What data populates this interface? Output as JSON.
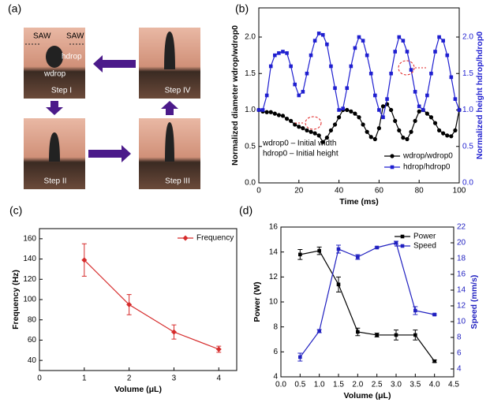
{
  "panel_labels": [
    "(a)",
    "(b)",
    "(c)",
    "(d)"
  ],
  "diagram": {
    "steps": [
      "Step I",
      "Step II",
      "Step III",
      "Step IV"
    ],
    "saw_left": "SAW",
    "saw_right": "SAW",
    "height_label": "hdrop",
    "width_label": "wdrop"
  },
  "chart_data": [
    {
      "type": "line",
      "xlabel": "Time (ms)",
      "ylabel": "Normalized diameter wdrop/wdrop0",
      "y2label": "Normalized height hdrop/hdrop0",
      "x": [
        0,
        2,
        4,
        6,
        8,
        10,
        12,
        14,
        16,
        18,
        20,
        22,
        24,
        26,
        28,
        30,
        32,
        34,
        36,
        38,
        40,
        42,
        44,
        46,
        48,
        50,
        52,
        54,
        56,
        58,
        60,
        62,
        64,
        66,
        68,
        70,
        72,
        74,
        76,
        78,
        80,
        82,
        84,
        86,
        88,
        90,
        92,
        94,
        96,
        98,
        100
      ],
      "xlim": [
        0,
        100
      ],
      "xticks": [
        0,
        20,
        40,
        60,
        80,
        100
      ],
      "ylim": [
        0,
        2.4
      ],
      "yticks": [
        {
          "value": 0,
          "label": "0.0"
        },
        {
          "value": 0.5,
          "label": "0.5"
        },
        {
          "value": 1,
          "label": "1.0"
        },
        {
          "value": 1.5,
          "label": "1.5"
        },
        {
          "value": 2,
          "label": "2.0"
        }
      ],
      "y2lim": [
        0,
        2.4
      ],
      "y2ticks": [
        {
          "value": 0,
          "label": "0.0"
        },
        {
          "value": 0.5,
          "label": "0.5"
        },
        {
          "value": 1,
          "label": "1.0"
        },
        {
          "value": 1.5,
          "label": "1.5"
        },
        {
          "value": 2,
          "label": "2.0"
        }
      ],
      "legend": "lower right",
      "annotations": [
        "wdrop0 – Initial width",
        "hdrop0 – Initial height"
      ],
      "series": [
        {
          "name": "wdrop/wdrop0",
          "color": "#000000",
          "marker": "circle",
          "values": [
            1.0,
            0.98,
            0.97,
            0.97,
            0.95,
            0.93,
            0.92,
            0.88,
            0.85,
            0.8,
            0.77,
            0.75,
            0.72,
            0.7,
            0.68,
            0.65,
            0.56,
            0.62,
            0.72,
            0.8,
            0.9,
            1.0,
            1.0,
            0.98,
            0.95,
            0.9,
            0.8,
            0.7,
            0.63,
            0.6,
            0.75,
            1.05,
            1.08,
            1.0,
            0.85,
            0.72,
            0.62,
            0.6,
            0.7,
            0.85,
            0.98,
            1.0,
            0.95,
            0.9,
            0.82,
            0.72,
            0.68,
            0.65,
            0.64,
            0.72,
            1.0
          ]
        },
        {
          "name": "hdrop/hdrop0",
          "color": "#1f1fd0",
          "marker": "square",
          "axis": "y2",
          "values": [
            1.0,
            1.0,
            1.2,
            1.6,
            1.75,
            1.78,
            1.8,
            1.78,
            1.6,
            1.35,
            1.2,
            1.25,
            1.5,
            1.75,
            1.95,
            2.05,
            2.03,
            1.9,
            1.6,
            1.3,
            1.0,
            1.02,
            1.3,
            1.6,
            1.85,
            2.0,
            1.95,
            1.75,
            1.5,
            1.2,
            1.0,
            0.9,
            1.15,
            1.5,
            1.8,
            2.0,
            1.95,
            1.8,
            1.55,
            1.25,
            1.05,
            1.0,
            1.2,
            1.5,
            1.8,
            2.0,
            1.95,
            1.75,
            1.45,
            1.15,
            1.0
          ]
        }
      ]
    },
    {
      "type": "line",
      "xlabel": "Volume (μL)",
      "ylabel": "Frequency (Hz)",
      "x": [
        1,
        2,
        3,
        4
      ],
      "xlim": [
        0,
        4.4
      ],
      "xticks": [
        0,
        1,
        2,
        3,
        4
      ],
      "ylim": [
        30,
        170
      ],
      "yticks": [
        40,
        60,
        80,
        100,
        120,
        140,
        160
      ],
      "legend": "upper right",
      "series": [
        {
          "name": "Frequency",
          "color": "#d62c2c",
          "marker": "diamond",
          "values": [
            139,
            95,
            68,
            51
          ],
          "errors": [
            16,
            10,
            7,
            3
          ]
        }
      ]
    },
    {
      "type": "line",
      "xlabel": "Volume (μL)",
      "ylabel": "Power (W)",
      "y2label": "Speed (mm/s)",
      "x": [
        0.5,
        1,
        1.5,
        2,
        2.5,
        3,
        3.5,
        4
      ],
      "xlim": [
        0,
        4.5
      ],
      "xticks": [
        {
          "value": 0,
          "label": "0.0"
        },
        {
          "value": 0.5,
          "label": "0.5"
        },
        {
          "value": 1,
          "label": "1.0"
        },
        {
          "value": 1.5,
          "label": "1.5"
        },
        {
          "value": 2,
          "label": "2.0"
        },
        {
          "value": 2.5,
          "label": "2.5"
        },
        {
          "value": 3,
          "label": "3.0"
        },
        {
          "value": 3.5,
          "label": "3.5"
        },
        {
          "value": 4,
          "label": "4.0"
        },
        {
          "value": 4.5,
          "label": "4.5"
        }
      ],
      "ylim": [
        4,
        16
      ],
      "yticks": [
        4,
        6,
        8,
        10,
        12,
        14,
        16
      ],
      "y2lim": [
        3,
        22
      ],
      "y2ticks": [
        4,
        6,
        8,
        10,
        12,
        14,
        16,
        18,
        20,
        22
      ],
      "legend": "upper right",
      "series": [
        {
          "name": "Power",
          "color": "#000000",
          "marker": "square",
          "values": [
            13.8,
            14.1,
            11.4,
            7.6,
            7.35,
            7.35,
            7.35,
            5.25
          ],
          "errors": [
            0.4,
            0.3,
            0.6,
            0.3,
            0.15,
            0.4,
            0.4,
            0.1
          ]
        },
        {
          "name": "Speed",
          "color": "#2020c0",
          "marker": "square",
          "axis": "y2",
          "values": [
            5.5,
            8.8,
            19.2,
            18.2,
            19.4,
            20.0,
            11.4,
            10.9
          ],
          "errors": [
            0.5,
            0.2,
            0.5,
            0.3,
            0.1,
            0.2,
            0.5,
            0.1
          ]
        }
      ]
    }
  ]
}
